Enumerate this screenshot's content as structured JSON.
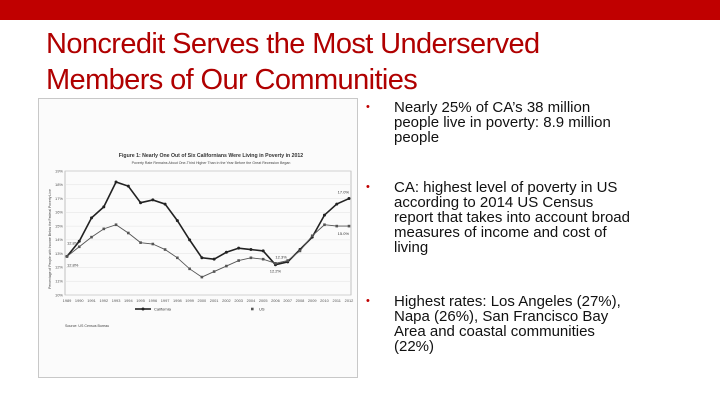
{
  "accent_color": "#c00000",
  "title": {
    "line1": "Noncredit Serves the Most Underserved",
    "line2": "Members of Our Communities"
  },
  "figure": {
    "type": "line",
    "title_line1": "Figure 1: Nearly One Out of Six Californians Were Living in Poverty in 2012",
    "title_line2": "Poverty Rate Remains About One-Third Higher Than in the Year Before the Great Recession Began",
    "ylabel": "Percentage of People with Income Below the Federal Poverty Line",
    "source": "Source: US Census Bureau",
    "ylim": [
      10,
      19
    ],
    "y_ticks": [
      "10%",
      "11%",
      "12%",
      "13%",
      "14%",
      "15%",
      "16%",
      "17%",
      "18%",
      "19%"
    ],
    "categories": [
      "1989",
      "1990",
      "1991",
      "1992",
      "1993",
      "1994",
      "1995",
      "1996",
      "1997",
      "1998",
      "1999",
      "2000",
      "2001",
      "2002",
      "2003",
      "2004",
      "2005",
      "2006",
      "2007",
      "2008",
      "2009",
      "2010",
      "2011",
      "2012"
    ],
    "series": [
      {
        "name": "California",
        "color": "#222222",
        "values": [
          12.8,
          13.9,
          15.6,
          16.4,
          18.2,
          17.9,
          16.7,
          16.9,
          16.6,
          15.4,
          14.0,
          12.7,
          12.6,
          13.1,
          13.4,
          13.3,
          13.2,
          12.2,
          12.4,
          13.3,
          14.2,
          15.8,
          16.6,
          17.0
        ]
      },
      {
        "name": "US",
        "color": "#555555",
        "values": [
          12.8,
          13.5,
          14.2,
          14.8,
          15.1,
          14.5,
          13.8,
          13.7,
          13.3,
          12.7,
          11.9,
          11.3,
          11.7,
          12.1,
          12.5,
          12.7,
          12.6,
          12.3,
          12.5,
          13.2,
          14.3,
          15.1,
          15.0,
          15.0
        ]
      }
    ],
    "annotations": [
      "17.0%",
      "15.0%",
      "12.8%",
      "12.8%",
      "12.2%",
      "12.3%"
    ]
  },
  "bullets": [
    {
      "symbol": "•",
      "lines": [
        "Nearly 25% of CA’s 38 million",
        "people live in poverty: 8.9 million",
        "people"
      ]
    },
    {
      "symbol": "•",
      "lines": [
        "CA: highest level of poverty in US",
        "according to 2014 US Census",
        "report that takes into account broad",
        "measures of income and cost of",
        "living"
      ]
    },
    {
      "symbol": "•",
      "lines": [
        "Highest rates: Los Angeles (27%),",
        "Napa (26%), San Francisco Bay",
        "Area and coastal communities",
        "(22%)"
      ]
    }
  ]
}
